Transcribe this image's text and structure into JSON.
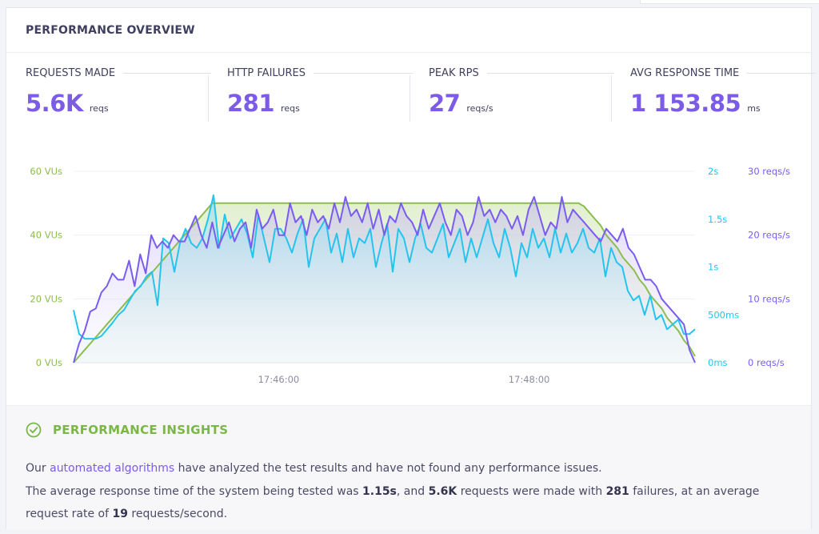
{
  "header": {
    "title": "PERFORMANCE OVERVIEW"
  },
  "metrics": [
    {
      "label": "REQUESTS MADE",
      "value": "5.6K",
      "unit": "reqs"
    },
    {
      "label": "HTTP FAILURES",
      "value": "281",
      "unit": "reqs"
    },
    {
      "label": "PEAK RPS",
      "value": "27",
      "unit": "reqs/s"
    },
    {
      "label": "AVG RESPONSE TIME",
      "value": "1 153.85",
      "unit": "ms"
    }
  ],
  "colors": {
    "vus": "#8cbd4e",
    "response_time": "#25c4ee",
    "rps": "#7b5cf0",
    "accent": "#7c5ce6",
    "insight_green": "#7ab648"
  },
  "chart_data": {
    "type": "line",
    "x_ticks": [
      "17:46:00",
      "17:48:00"
    ],
    "axes": {
      "left": {
        "ticks": [
          "0 VUs",
          "20 VUs",
          "40 VUs",
          "60 VUs"
        ],
        "range": [
          0,
          60
        ]
      },
      "right_response": {
        "ticks": [
          "0ms",
          "500ms",
          "1s",
          "1.5s",
          "2s"
        ],
        "range": [
          0,
          2
        ]
      },
      "right_rps": {
        "ticks": [
          "0 reqs/s",
          "10 reqs/s",
          "20 reqs/s",
          "30 reqs/s"
        ],
        "range": [
          0,
          30
        ]
      }
    },
    "grid": true,
    "series": [
      {
        "unit": "VUs",
        "values": [
          0,
          2,
          4,
          6,
          8,
          10,
          12,
          14,
          16,
          18,
          20,
          22,
          24,
          26,
          28,
          30,
          32,
          34,
          36,
          38,
          40,
          42,
          44,
          46,
          48,
          50,
          50,
          50,
          50,
          50,
          50,
          50,
          50,
          50,
          50,
          50,
          50,
          50,
          50,
          50,
          50,
          50,
          50,
          50,
          50,
          50,
          50,
          50,
          50,
          50,
          50,
          50,
          50,
          50,
          50,
          50,
          50,
          50,
          50,
          50,
          50,
          50,
          50,
          50,
          50,
          50,
          50,
          50,
          50,
          50,
          50,
          50,
          50,
          50,
          50,
          50,
          50,
          50,
          50,
          50,
          50,
          50,
          50,
          50,
          50,
          50,
          50,
          50,
          50,
          50,
          50,
          50,
          49,
          47,
          45,
          43,
          40,
          38,
          36,
          33,
          31,
          29,
          26,
          24,
          21,
          19,
          17,
          14,
          12,
          10,
          7,
          5,
          2
        ]
      },
      {
        "unit": "s",
        "values": [
          0.55,
          0.3,
          0.25,
          0.25,
          0.25,
          0.28,
          0.35,
          0.42,
          0.5,
          0.55,
          0.65,
          0.75,
          0.8,
          0.9,
          0.95,
          0.6,
          1.3,
          1.25,
          0.95,
          1.25,
          1.4,
          1.25,
          1.2,
          1.3,
          1.5,
          1.75,
          1.2,
          1.55,
          1.3,
          1.4,
          1.5,
          1.35,
          1.1,
          1.55,
          1.3,
          1.05,
          1.4,
          1.4,
          1.3,
          1.15,
          1.35,
          1.5,
          1.0,
          1.3,
          1.4,
          1.5,
          1.15,
          1.35,
          1.05,
          1.4,
          1.1,
          1.3,
          1.25,
          1.4,
          1.0,
          1.25,
          1.45,
          0.95,
          1.4,
          1.3,
          1.05,
          1.3,
          1.45,
          1.2,
          1.15,
          1.3,
          1.45,
          1.1,
          1.25,
          1.4,
          1.05,
          1.3,
          1.1,
          1.3,
          1.5,
          1.25,
          1.1,
          1.4,
          1.2,
          0.9,
          1.25,
          1.1,
          1.4,
          1.2,
          1.3,
          1.1,
          1.4,
          1.15,
          1.35,
          1.15,
          1.25,
          1.4,
          1.2,
          1.15,
          1.3,
          0.9,
          1.2,
          1.05,
          1.0,
          0.75,
          0.65,
          0.7,
          0.5,
          0.7,
          0.45,
          0.5,
          0.35,
          0.4,
          0.45,
          0.3,
          0.3,
          0.35
        ]
      },
      {
        "unit": "reqs/s",
        "values": [
          0,
          3,
          5,
          8,
          8.5,
          11,
          12,
          14,
          13,
          13,
          16,
          12,
          17,
          14,
          20,
          18,
          19,
          18,
          20,
          19,
          19,
          21,
          23,
          20,
          18,
          22,
          18,
          20,
          22,
          19,
          21,
          22,
          18,
          24,
          21,
          22,
          24,
          20,
          20,
          25,
          22,
          23,
          20,
          24,
          22,
          23,
          21,
          25,
          22,
          26,
          23,
          24,
          22,
          25,
          21,
          24,
          20,
          23,
          22,
          25,
          23,
          22,
          20,
          24,
          21,
          23,
          25,
          22,
          20,
          24,
          23,
          20,
          22,
          26,
          23,
          24,
          22,
          24,
          23,
          21,
          23,
          20,
          24,
          26,
          23,
          20,
          22,
          21,
          26,
          22,
          24,
          23,
          22,
          21,
          20,
          19,
          21,
          20,
          19,
          21,
          18,
          17,
          15,
          13,
          13,
          12,
          10,
          9,
          8,
          7,
          6,
          2,
          0
        ]
      }
    ]
  },
  "insights": {
    "title": "PERFORMANCE INSIGHTS",
    "l1_pre": "Our ",
    "l1_link": "automated algorithms",
    "l1_post": " have analyzed the test results and have not found any performance issues.",
    "l2_a": "The average response time of the system being tested was ",
    "l2_b": "1.15s",
    "l2_c": ", and ",
    "l2_d": "5.6K",
    "l2_e": " requests were made with ",
    "l2_f": "281",
    "l2_g": " failures, at an average request rate of ",
    "l2_h": "19",
    "l2_i": " requests/second."
  }
}
